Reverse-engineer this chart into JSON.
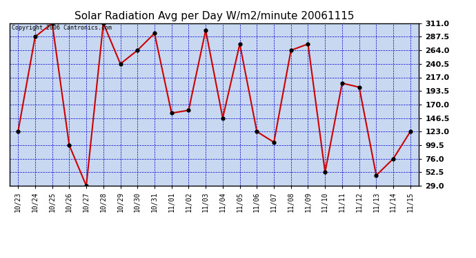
{
  "title": "Solar Radiation Avg per Day W/m2/minute 20061115",
  "copyright": "Copyright 2006 Cantronics.com",
  "dates": [
    "10/23",
    "10/24",
    "10/25",
    "10/26",
    "10/27",
    "10/28",
    "10/29",
    "10/30",
    "10/31",
    "11/01",
    "11/02",
    "11/03",
    "11/04",
    "11/05",
    "11/06",
    "11/07",
    "11/08",
    "11/09",
    "11/10",
    "11/11",
    "11/12",
    "11/13",
    "11/14",
    "11/15"
  ],
  "values": [
    123,
    287.5,
    311,
    99.5,
    29,
    311,
    240.5,
    264,
    293.5,
    155,
    160,
    299,
    146.5,
    275,
    123,
    104.5,
    264,
    275,
    52.5,
    207,
    200,
    47,
    76,
    123
  ],
  "line_color": "#cc0000",
  "marker_color": "#000000",
  "background_color": "#c8d8f0",
  "grid_color": "#0000cc",
  "title_color": "#000000",
  "ylim_min": 29.0,
  "ylim_max": 311.0,
  "yticks": [
    29.0,
    52.5,
    76.0,
    99.5,
    123.0,
    146.5,
    170.0,
    193.5,
    217.0,
    240.5,
    264.0,
    287.5,
    311.0
  ],
  "title_fontsize": 11,
  "copyright_fontsize": 6,
  "tick_fontsize": 7,
  "ytick_fontsize": 8
}
